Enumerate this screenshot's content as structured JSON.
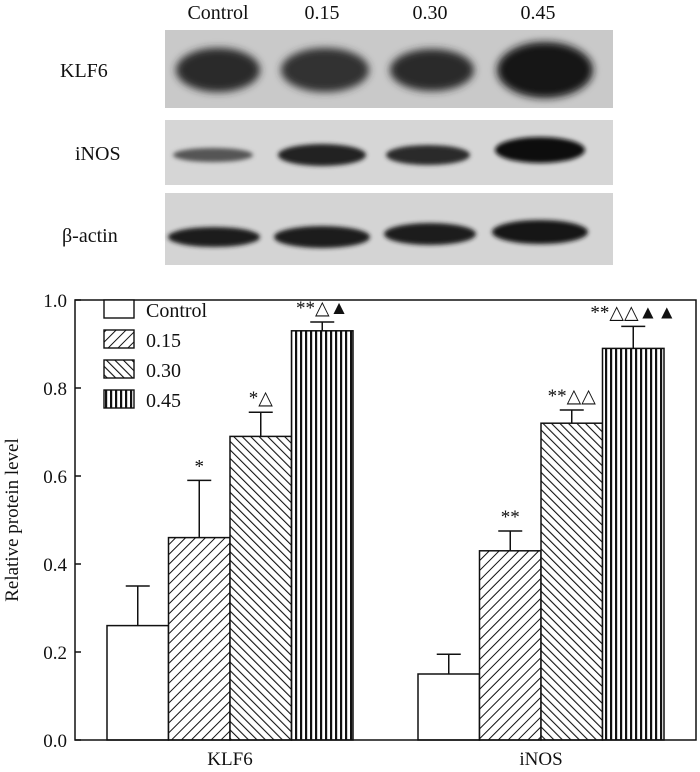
{
  "blot": {
    "column_labels": [
      "Control",
      "0.15",
      "0.30",
      "0.45"
    ],
    "row_labels": [
      "KLF6",
      "iNOS",
      "β-actin"
    ]
  },
  "chart_data": {
    "type": "bar",
    "categories": [
      "KLF6",
      "iNOS"
    ],
    "series": [
      {
        "name": "Control",
        "values": [
          0.26,
          0.15
        ],
        "errors": [
          0.09,
          0.045
        ],
        "annotations": [
          "",
          ""
        ],
        "pattern": "open"
      },
      {
        "name": "0.15",
        "values": [
          0.46,
          0.43
        ],
        "errors": [
          0.13,
          0.045
        ],
        "annotations": [
          "*",
          "**"
        ],
        "pattern": "diagonal-up"
      },
      {
        "name": "0.30",
        "values": [
          0.69,
          0.72
        ],
        "errors": [
          0.055,
          0.03
        ],
        "annotations": [
          "*△",
          "**△△"
        ],
        "pattern": "diagonal-down"
      },
      {
        "name": "0.45",
        "values": [
          0.93,
          0.89
        ],
        "errors": [
          0.02,
          0.05
        ],
        "annotations": [
          "**△▲",
          "**△△▲▲"
        ],
        "pattern": "vertical"
      }
    ],
    "xlabel": "",
    "ylabel": "Relative protein level",
    "ylim": [
      0,
      1.0
    ],
    "yticks": [
      "0.0",
      "0.2",
      "0.4",
      "0.6",
      "0.8",
      "1.0"
    ],
    "legend": "top-left",
    "grid": false
  }
}
